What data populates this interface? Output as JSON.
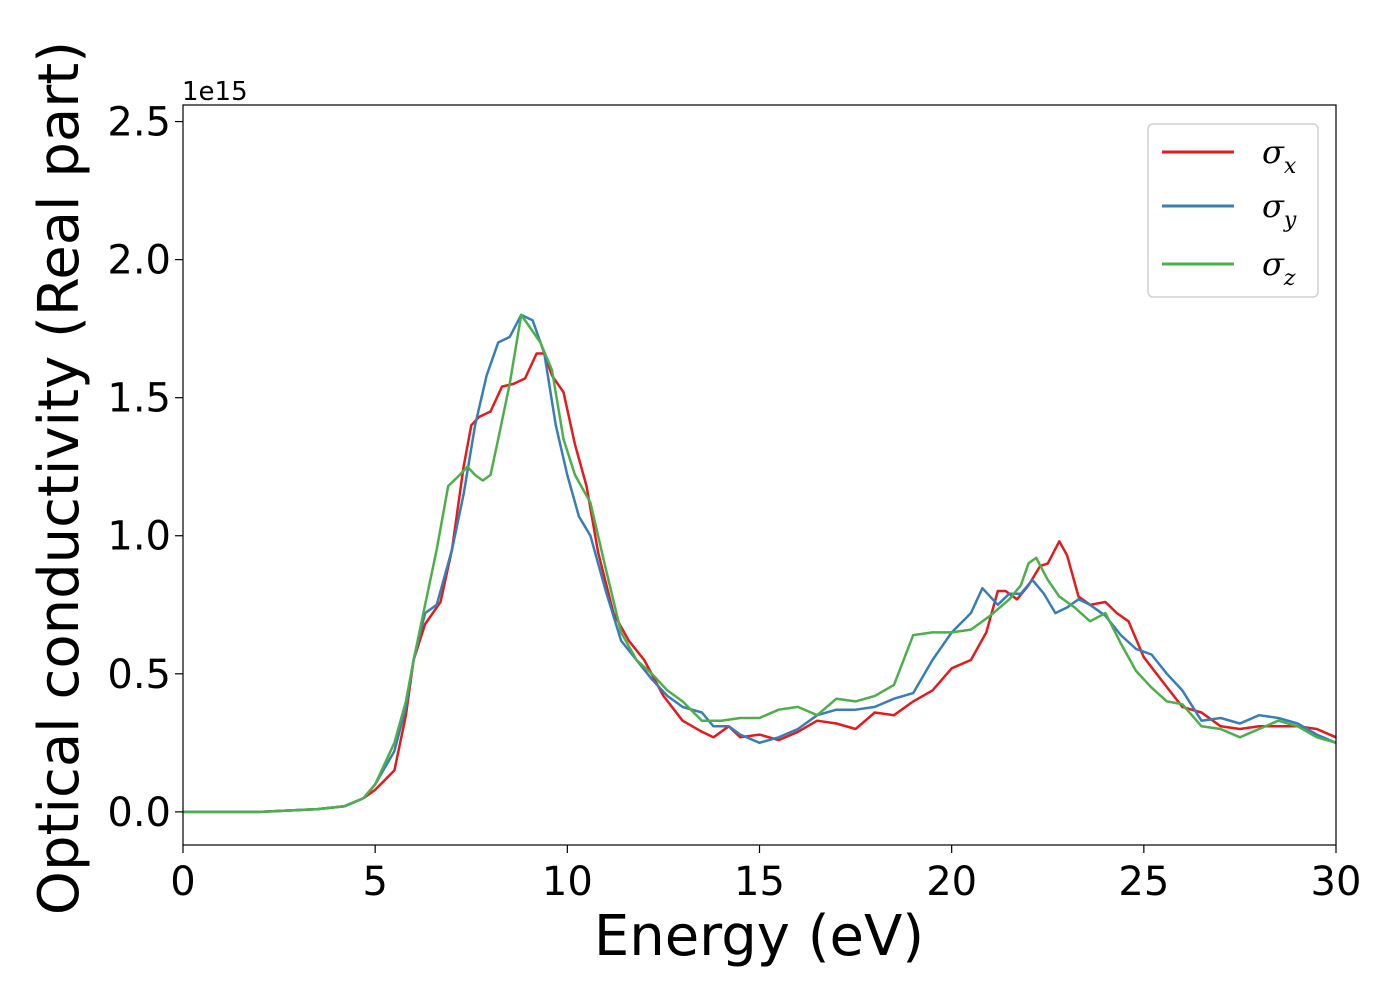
{
  "chart_data": {
    "type": "line",
    "xlabel": "Energy (eV)",
    "ylabel": "Optical conductivity (Real part)",
    "y_offset_text": "1e15",
    "xlim": [
      0,
      30
    ],
    "ylim": [
      -0.12,
      2.56
    ],
    "xticks": [
      0,
      5,
      10,
      15,
      20,
      25,
      30
    ],
    "xtick_labels": [
      "0",
      "5",
      "10",
      "15",
      "20",
      "25",
      "30"
    ],
    "yticks": [
      0.0,
      0.5,
      1.0,
      1.5,
      2.0,
      2.5
    ],
    "ytick_labels": [
      "0.0",
      "0.5",
      "1.0",
      "1.5",
      "2.0",
      "2.5"
    ],
    "grid": false,
    "legend_position": "top-right",
    "series": [
      {
        "name": "σx",
        "symbol": "σ",
        "subscript": "x",
        "color": "#e41a1c",
        "x": [
          0,
          2,
          3.5,
          4.2,
          4.7,
          5.0,
          5.5,
          5.8,
          6.0,
          6.3,
          6.7,
          7.0,
          7.3,
          7.5,
          7.7,
          8.0,
          8.3,
          8.6,
          8.9,
          9.2,
          9.4,
          9.6,
          9.9,
          10.2,
          10.5,
          10.8,
          11.2,
          11.6,
          12.0,
          12.5,
          13.0,
          13.5,
          13.8,
          14.2,
          14.5,
          15.0,
          15.5,
          16.0,
          16.5,
          17.0,
          17.5,
          18.0,
          18.5,
          19.0,
          19.5,
          20.0,
          20.5,
          20.9,
          21.2,
          21.4,
          21.7,
          22.0,
          22.3,
          22.5,
          22.8,
          23.0,
          23.3,
          23.6,
          24.0,
          24.3,
          24.6,
          25.0,
          25.5,
          26.0,
          26.5,
          27.0,
          27.5,
          28.0,
          28.5,
          29.0,
          29.5,
          30.0
        ],
        "y": [
          0.0,
          0.0,
          0.01,
          0.02,
          0.05,
          0.08,
          0.15,
          0.35,
          0.55,
          0.68,
          0.76,
          0.95,
          1.25,
          1.4,
          1.43,
          1.45,
          1.54,
          1.55,
          1.57,
          1.66,
          1.66,
          1.58,
          1.52,
          1.33,
          1.18,
          0.94,
          0.72,
          0.62,
          0.55,
          0.42,
          0.33,
          0.29,
          0.27,
          0.31,
          0.27,
          0.28,
          0.26,
          0.29,
          0.33,
          0.32,
          0.3,
          0.36,
          0.35,
          0.4,
          0.44,
          0.52,
          0.55,
          0.65,
          0.8,
          0.8,
          0.77,
          0.82,
          0.89,
          0.9,
          0.98,
          0.93,
          0.78,
          0.75,
          0.76,
          0.72,
          0.69,
          0.56,
          0.47,
          0.38,
          0.36,
          0.31,
          0.3,
          0.31,
          0.31,
          0.31,
          0.3,
          0.27
        ]
      },
      {
        "name": "σy",
        "symbol": "σ",
        "subscript": "y",
        "color": "#377eb8",
        "x": [
          0,
          2,
          3.5,
          4.2,
          4.7,
          5.0,
          5.5,
          5.8,
          6.0,
          6.3,
          6.6,
          7.0,
          7.3,
          7.6,
          7.9,
          8.2,
          8.5,
          8.8,
          9.1,
          9.4,
          9.7,
          10.0,
          10.3,
          10.6,
          11.0,
          11.4,
          11.8,
          12.2,
          12.6,
          13.0,
          13.5,
          13.8,
          14.2,
          14.5,
          15.0,
          15.5,
          16.0,
          16.5,
          17.0,
          17.5,
          18.0,
          18.5,
          19.0,
          19.5,
          20.0,
          20.5,
          20.8,
          21.2,
          21.5,
          21.8,
          22.1,
          22.4,
          22.7,
          23.0,
          23.3,
          23.6,
          24.0,
          24.4,
          24.8,
          25.2,
          25.6,
          26.0,
          26.5,
          27.0,
          27.5,
          28.0,
          28.5,
          29.0,
          29.5,
          30.0
        ],
        "y": [
          0.0,
          0.0,
          0.01,
          0.02,
          0.05,
          0.1,
          0.22,
          0.38,
          0.55,
          0.72,
          0.75,
          0.95,
          1.15,
          1.4,
          1.58,
          1.7,
          1.72,
          1.8,
          1.78,
          1.66,
          1.4,
          1.22,
          1.07,
          1.0,
          0.8,
          0.62,
          0.55,
          0.48,
          0.42,
          0.38,
          0.36,
          0.31,
          0.31,
          0.28,
          0.25,
          0.27,
          0.3,
          0.35,
          0.37,
          0.37,
          0.38,
          0.41,
          0.43,
          0.55,
          0.65,
          0.72,
          0.81,
          0.75,
          0.79,
          0.79,
          0.84,
          0.79,
          0.72,
          0.74,
          0.77,
          0.75,
          0.71,
          0.64,
          0.59,
          0.57,
          0.5,
          0.44,
          0.33,
          0.34,
          0.32,
          0.35,
          0.34,
          0.32,
          0.28,
          0.25
        ]
      },
      {
        "name": "σz",
        "symbol": "σ",
        "subscript": "z",
        "color": "#4daf4a",
        "x": [
          0,
          2,
          3.5,
          4.2,
          4.7,
          5.0,
          5.5,
          5.8,
          6.0,
          6.3,
          6.6,
          6.9,
          7.2,
          7.4,
          7.6,
          7.8,
          8.0,
          8.2,
          8.5,
          8.8,
          9.0,
          9.3,
          9.6,
          9.9,
          10.2,
          10.6,
          11.0,
          11.4,
          11.8,
          12.2,
          12.6,
          13.0,
          13.5,
          14.0,
          14.5,
          15.0,
          15.5,
          16.0,
          16.5,
          17.0,
          17.5,
          18.0,
          18.5,
          19.0,
          19.5,
          20.0,
          20.5,
          21.0,
          21.5,
          21.8,
          22.0,
          22.2,
          22.5,
          22.8,
          23.2,
          23.6,
          24.0,
          24.4,
          24.8,
          25.2,
          25.6,
          26.0,
          26.5,
          27.0,
          27.5,
          28.0,
          28.5,
          29.0,
          29.5,
          30.0
        ],
        "y": [
          0.0,
          0.0,
          0.01,
          0.02,
          0.05,
          0.1,
          0.25,
          0.4,
          0.55,
          0.75,
          0.95,
          1.18,
          1.22,
          1.25,
          1.22,
          1.2,
          1.22,
          1.35,
          1.55,
          1.8,
          1.76,
          1.7,
          1.6,
          1.35,
          1.22,
          1.12,
          0.88,
          0.65,
          0.55,
          0.5,
          0.44,
          0.4,
          0.33,
          0.33,
          0.34,
          0.34,
          0.37,
          0.38,
          0.35,
          0.41,
          0.4,
          0.42,
          0.46,
          0.64,
          0.65,
          0.65,
          0.66,
          0.71,
          0.77,
          0.82,
          0.9,
          0.92,
          0.84,
          0.78,
          0.74,
          0.69,
          0.72,
          0.61,
          0.51,
          0.45,
          0.4,
          0.39,
          0.31,
          0.3,
          0.27,
          0.3,
          0.33,
          0.31,
          0.27,
          0.25
        ]
      }
    ]
  }
}
